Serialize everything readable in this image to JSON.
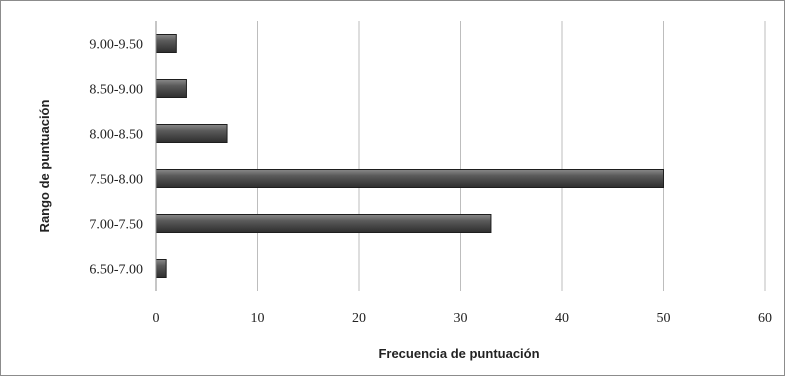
{
  "chart_data": {
    "type": "bar",
    "orientation": "horizontal",
    "title": "",
    "xlabel": "Frecuencia de puntuación",
    "ylabel": "Rango de puntuación",
    "categories": [
      "6.50-7.00",
      "7.00-7.50",
      "7.50-8.00",
      "8.00-8.50",
      "8.50-9.00",
      "9.00-9.50"
    ],
    "values": [
      1,
      33,
      50,
      7,
      3,
      2
    ],
    "xlim": [
      0,
      60
    ],
    "xticks": [
      "0",
      "10",
      "20",
      "30",
      "40",
      "50",
      "60"
    ],
    "grid": "vertical",
    "legend": "none",
    "bar_color": "#4a4a4a"
  }
}
